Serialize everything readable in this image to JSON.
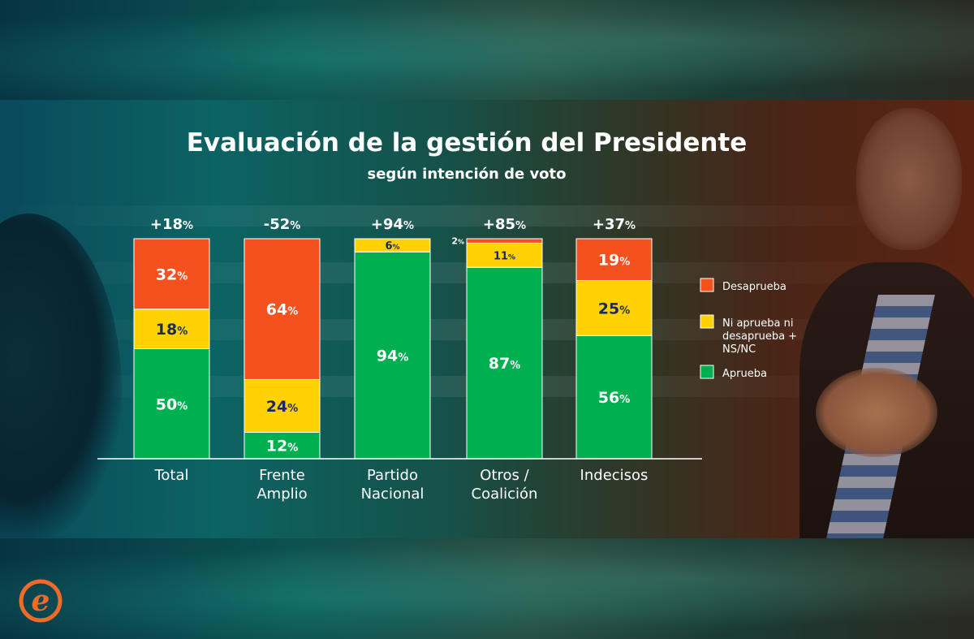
{
  "chart_data": {
    "type": "bar",
    "stacked": true,
    "title": "Evaluación de la gestión del Presidente",
    "subtitle": "según intención de voto",
    "categories": [
      [
        "Total"
      ],
      [
        "Frente",
        "Amplio"
      ],
      [
        "Partido",
        "Nacional"
      ],
      [
        "Otros /",
        "Coalición"
      ],
      [
        "Indecisos"
      ]
    ],
    "net_labels": [
      "+18%",
      "-52%",
      "+94%",
      "+85%",
      "+37%"
    ],
    "series": [
      {
        "name": "Aprueba",
        "color": "#00b050",
        "values": [
          50,
          12,
          94,
          87,
          56
        ]
      },
      {
        "name": "Ni aprueba ni desaprueba + NS/NC",
        "color": "#ffd200",
        "values": [
          18,
          24,
          6,
          11,
          25
        ]
      },
      {
        "name": "Desaprueba",
        "color": "#f4511e",
        "values": [
          32,
          64,
          0,
          2,
          19
        ]
      }
    ],
    "value_labels": [
      [
        "50%",
        "12%",
        "94%",
        "87%",
        "56%"
      ],
      [
        "18%",
        "24%",
        "6%",
        "11%",
        "25%"
      ],
      [
        "32%",
        "64%",
        "",
        "2%",
        "19%"
      ]
    ],
    "legend": [
      {
        "label": [
          "Desaprueba"
        ],
        "color": "#f4511e"
      },
      {
        "label": [
          "Ni aprueba ni",
          "desaprueba +",
          "NS/NC"
        ],
        "color": "#ffd200"
      },
      {
        "label": [
          "Aprueba"
        ],
        "color": "#00b050"
      }
    ],
    "legend_position": "right",
    "ylim": [
      0,
      100
    ],
    "grid": false
  },
  "logo": {
    "letter": "e",
    "color": "#f06a2a"
  }
}
